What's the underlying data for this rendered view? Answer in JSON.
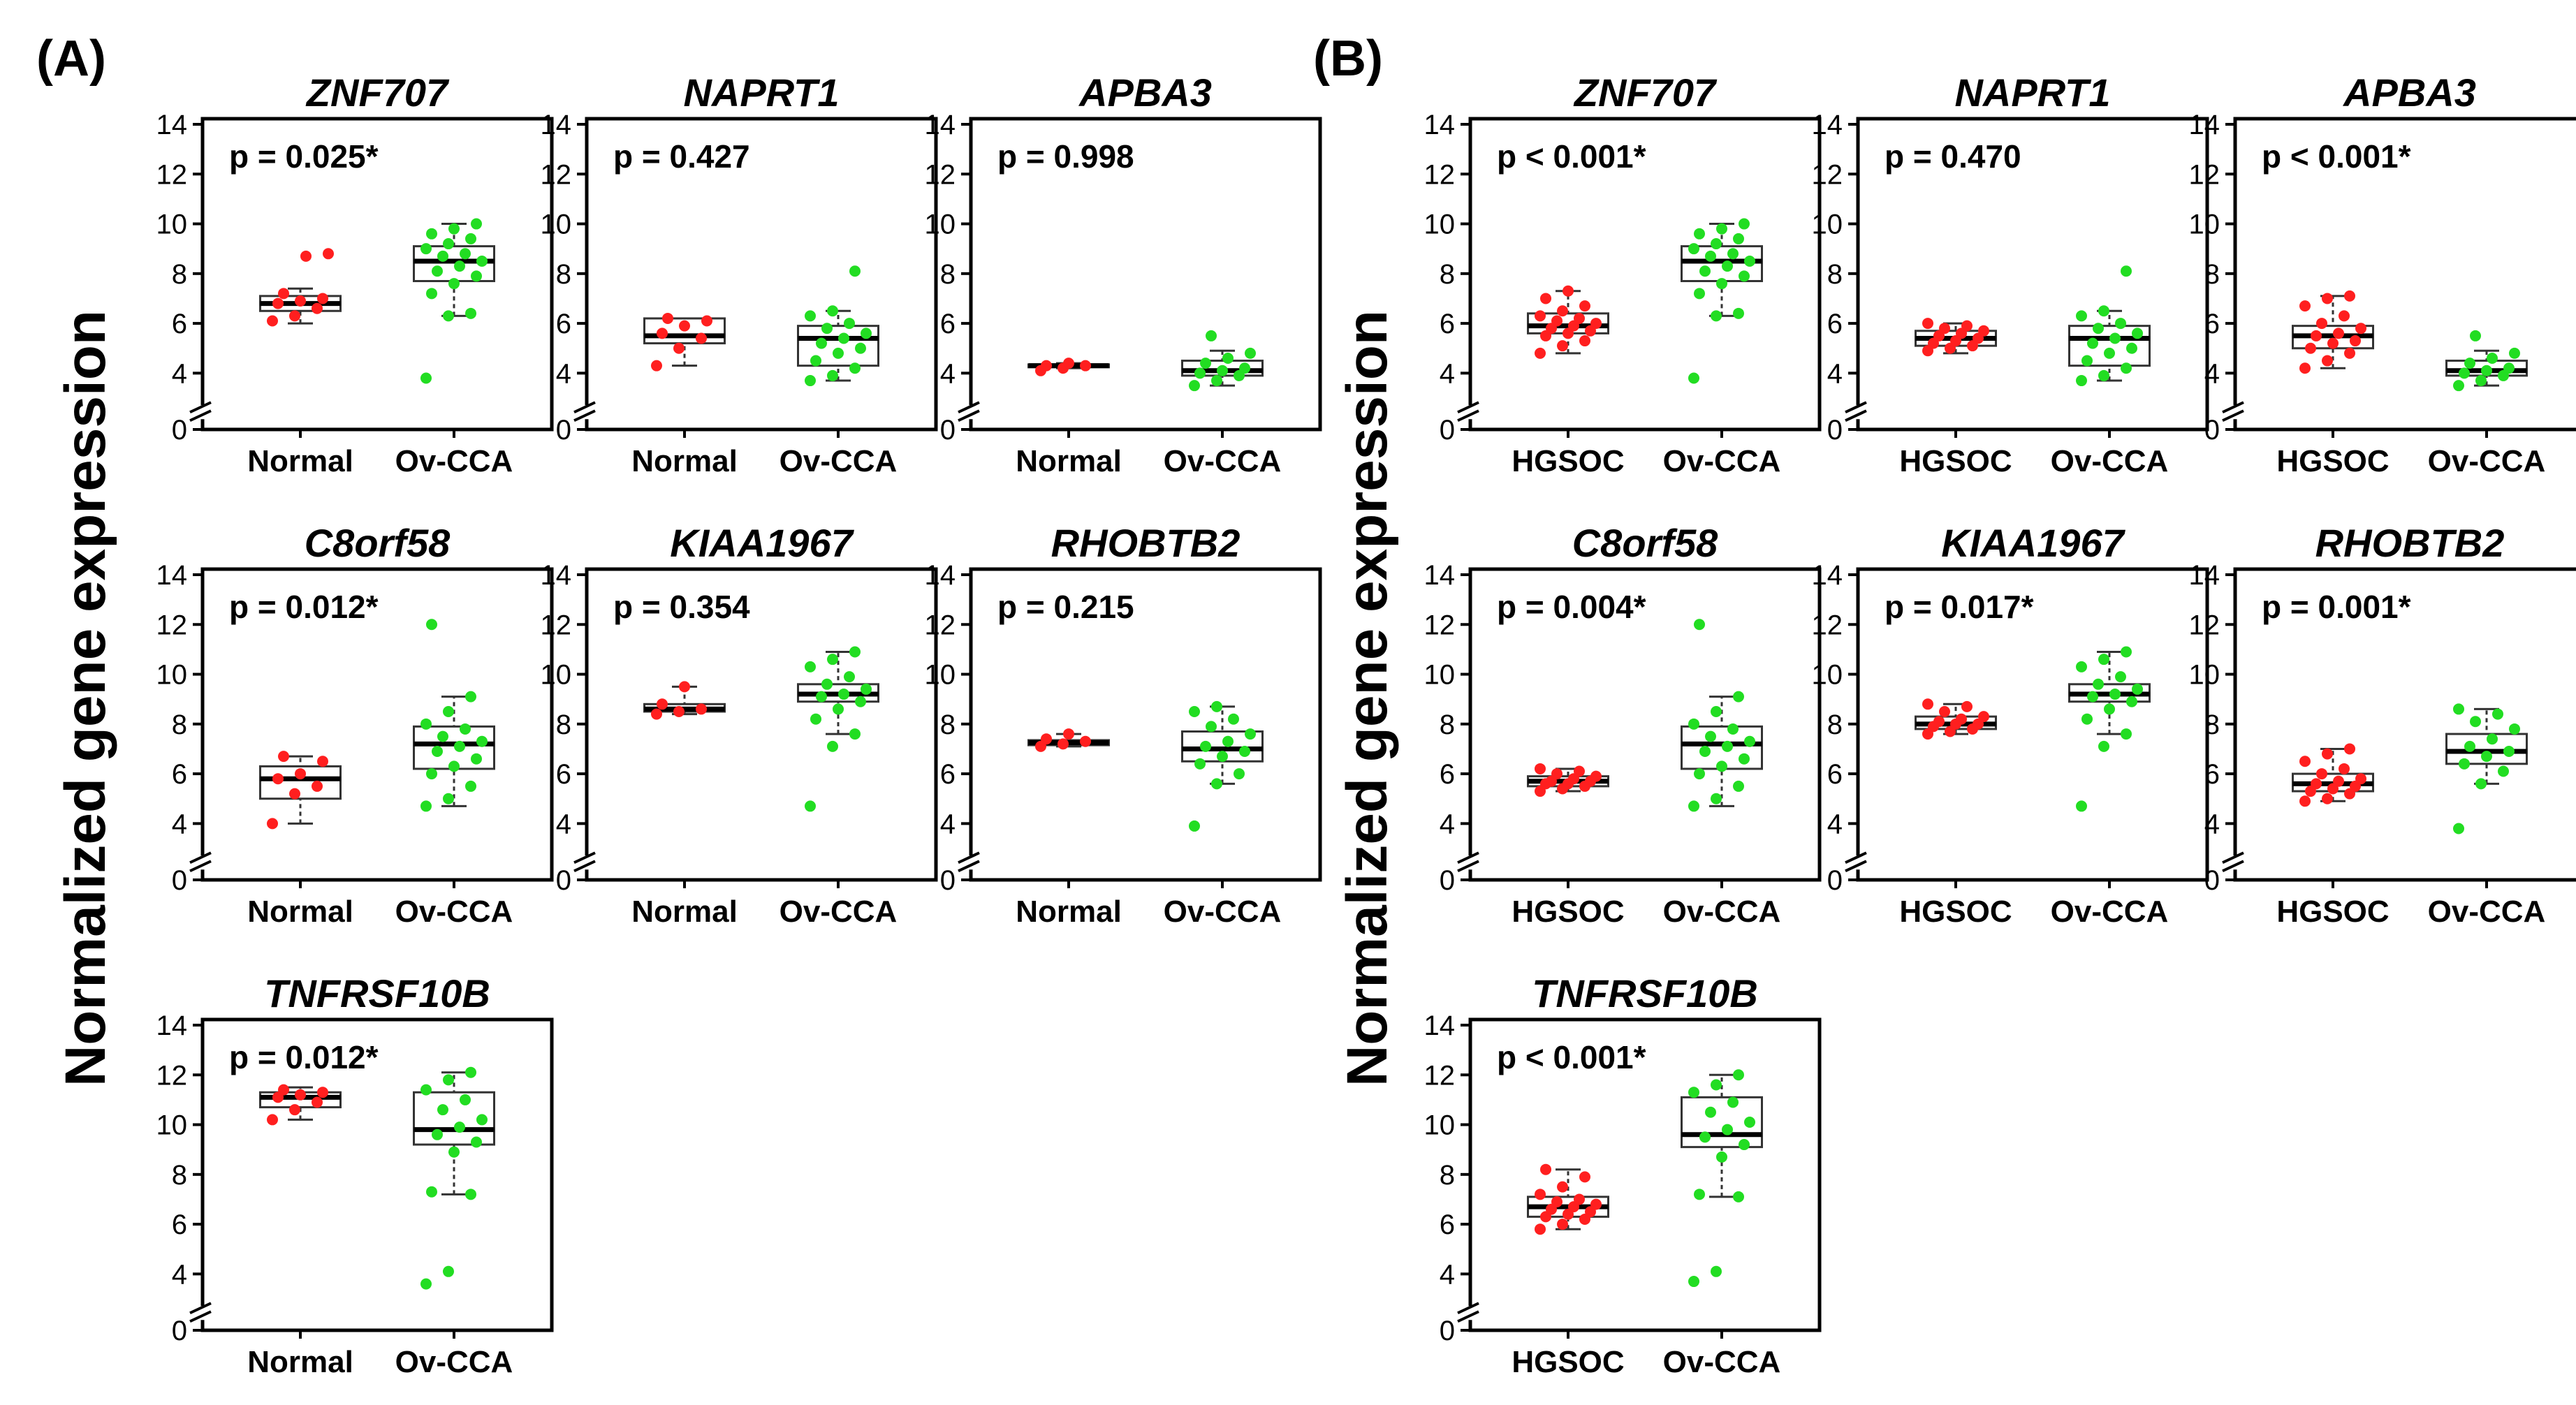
{
  "figure": {
    "panel_a_label": "(A)",
    "panel_b_label": "(B)",
    "ylabel": "Normalized gene expression",
    "colors": {
      "group1": "#ff1f1f",
      "group2": "#22dd22",
      "axis": "#000000",
      "box": "#333333"
    }
  },
  "chart_data": [
    {
      "panel": "A",
      "type": "box",
      "title": "ZNF707",
      "pvalue": "p = 0.025*",
      "categories": [
        "Normal",
        "Ov-CCA"
      ],
      "ylim": [
        0,
        14
      ],
      "yticks": [
        0,
        4,
        6,
        8,
        10,
        12,
        14
      ],
      "axis_break": true,
      "boxes": [
        {
          "whisker_low": 6.0,
          "q1": 6.5,
          "median": 6.8,
          "q3": 7.1,
          "whisker_high": 7.4,
          "points": [
            6.1,
            6.3,
            6.6,
            6.8,
            6.9,
            7.0,
            7.2,
            8.7,
            8.8
          ]
        },
        {
          "whisker_low": 6.3,
          "q1": 7.7,
          "median": 8.5,
          "q3": 9.1,
          "whisker_high": 10.0,
          "points": [
            3.8,
            6.3,
            6.4,
            7.2,
            7.6,
            7.9,
            8.1,
            8.3,
            8.5,
            8.7,
            8.8,
            9.0,
            9.2,
            9.4,
            9.6,
            9.8,
            10.0
          ]
        }
      ]
    },
    {
      "panel": "A",
      "type": "box",
      "title": "NAPRT1",
      "pvalue": "p = 0.427",
      "categories": [
        "Normal",
        "Ov-CCA"
      ],
      "ylim": [
        0,
        14
      ],
      "yticks": [
        0,
        4,
        6,
        8,
        10,
        12,
        14
      ],
      "axis_break": true,
      "boxes": [
        {
          "whisker_low": 4.3,
          "q1": 5.2,
          "median": 5.5,
          "q3": 6.2,
          "whisker_high": 6.2,
          "points": [
            4.3,
            5.0,
            5.4,
            5.6,
            5.9,
            6.1,
            6.2
          ]
        },
        {
          "whisker_low": 3.7,
          "q1": 4.3,
          "median": 5.4,
          "q3": 5.9,
          "whisker_high": 6.5,
          "points": [
            3.7,
            3.9,
            4.2,
            4.5,
            4.8,
            5.0,
            5.2,
            5.4,
            5.6,
            5.8,
            6.0,
            6.3,
            6.5,
            8.1
          ]
        }
      ]
    },
    {
      "panel": "A",
      "type": "box",
      "title": "APBA3",
      "pvalue": "p = 0.998",
      "categories": [
        "Normal",
        "Ov-CCA"
      ],
      "ylim": [
        0,
        14
      ],
      "yticks": [
        0,
        4,
        6,
        8,
        10,
        12,
        14
      ],
      "axis_break": true,
      "boxes": [
        {
          "whisker_low": 4.2,
          "q1": 4.25,
          "median": 4.3,
          "q3": 4.35,
          "whisker_high": 4.4,
          "points": [
            4.1,
            4.2,
            4.3,
            4.3,
            4.4
          ]
        },
        {
          "whisker_low": 3.5,
          "q1": 3.9,
          "median": 4.1,
          "q3": 4.5,
          "whisker_high": 4.9,
          "points": [
            3.5,
            3.7,
            3.9,
            4.0,
            4.1,
            4.2,
            4.4,
            4.6,
            4.8,
            5.5
          ]
        }
      ]
    },
    {
      "panel": "B",
      "type": "box",
      "title": "ZNF707",
      "pvalue": "p < 0.001*",
      "categories": [
        "HGSOC",
        "Ov-CCA"
      ],
      "ylim": [
        0,
        14
      ],
      "yticks": [
        0,
        4,
        6,
        8,
        10,
        12,
        14
      ],
      "axis_break": true,
      "boxes": [
        {
          "whisker_low": 4.8,
          "q1": 5.6,
          "median": 5.9,
          "q3": 6.4,
          "whisker_high": 7.3,
          "points": [
            4.8,
            5.1,
            5.3,
            5.5,
            5.6,
            5.7,
            5.8,
            5.9,
            6.0,
            6.1,
            6.2,
            6.3,
            6.5,
            6.7,
            7.0,
            7.3
          ]
        },
        {
          "whisker_low": 6.3,
          "q1": 7.7,
          "median": 8.5,
          "q3": 9.1,
          "whisker_high": 10.0,
          "points": [
            3.8,
            6.3,
            6.4,
            7.2,
            7.6,
            7.9,
            8.1,
            8.3,
            8.5,
            8.7,
            8.8,
            9.0,
            9.2,
            9.4,
            9.6,
            9.8,
            10.0
          ]
        }
      ]
    },
    {
      "panel": "B",
      "type": "box",
      "title": "NAPRT1",
      "pvalue": "p = 0.470",
      "categories": [
        "HGSOC",
        "Ov-CCA"
      ],
      "ylim": [
        0,
        14
      ],
      "yticks": [
        0,
        4,
        6,
        8,
        10,
        12,
        14
      ],
      "axis_break": true,
      "boxes": [
        {
          "whisker_low": 4.8,
          "q1": 5.1,
          "median": 5.4,
          "q3": 5.7,
          "whisker_high": 6.0,
          "points": [
            4.9,
            5.0,
            5.1,
            5.2,
            5.3,
            5.4,
            5.5,
            5.6,
            5.7,
            5.8,
            5.9,
            6.0
          ]
        },
        {
          "whisker_low": 3.7,
          "q1": 4.3,
          "median": 5.4,
          "q3": 5.9,
          "whisker_high": 6.5,
          "points": [
            3.7,
            3.9,
            4.2,
            4.5,
            4.8,
            5.0,
            5.2,
            5.4,
            5.6,
            5.8,
            6.0,
            6.3,
            6.5,
            8.1
          ]
        }
      ]
    },
    {
      "panel": "B",
      "type": "box",
      "title": "APBA3",
      "pvalue": "p < 0.001*",
      "categories": [
        "HGSOC",
        "Ov-CCA"
      ],
      "ylim": [
        0,
        14
      ],
      "yticks": [
        0,
        4,
        6,
        8,
        10,
        12,
        14
      ],
      "axis_break": true,
      "boxes": [
        {
          "whisker_low": 4.2,
          "q1": 5.0,
          "median": 5.5,
          "q3": 5.9,
          "whisker_high": 7.1,
          "points": [
            4.2,
            4.5,
            4.8,
            5.0,
            5.2,
            5.3,
            5.5,
            5.6,
            5.8,
            6.0,
            6.3,
            6.7,
            7.0,
            7.1
          ]
        },
        {
          "whisker_low": 3.5,
          "q1": 3.9,
          "median": 4.1,
          "q3": 4.5,
          "whisker_high": 4.9,
          "points": [
            3.5,
            3.7,
            3.9,
            4.0,
            4.1,
            4.2,
            4.4,
            4.6,
            4.8,
            5.5
          ]
        }
      ]
    },
    {
      "panel": "A",
      "type": "box",
      "title": "C8orf58",
      "pvalue": "p = 0.012*",
      "categories": [
        "Normal",
        "Ov-CCA"
      ],
      "ylim": [
        0,
        14
      ],
      "yticks": [
        0,
        4,
        6,
        8,
        10,
        12,
        14
      ],
      "axis_break": true,
      "boxes": [
        {
          "whisker_low": 4.0,
          "q1": 5.0,
          "median": 5.8,
          "q3": 6.3,
          "whisker_high": 6.7,
          "points": [
            4.0,
            5.2,
            5.5,
            5.8,
            6.0,
            6.5,
            6.7
          ]
        },
        {
          "whisker_low": 4.7,
          "q1": 6.2,
          "median": 7.2,
          "q3": 7.9,
          "whisker_high": 9.1,
          "points": [
            4.7,
            5.0,
            5.5,
            6.0,
            6.3,
            6.6,
            6.9,
            7.1,
            7.3,
            7.5,
            7.8,
            8.0,
            8.5,
            9.1,
            12.0
          ]
        }
      ]
    },
    {
      "panel": "A",
      "type": "box",
      "title": "KIAA1967",
      "pvalue": "p = 0.354",
      "categories": [
        "Normal",
        "Ov-CCA"
      ],
      "ylim": [
        0,
        14
      ],
      "yticks": [
        0,
        4,
        6,
        8,
        10,
        12,
        14
      ],
      "axis_break": true,
      "boxes": [
        {
          "whisker_low": 8.4,
          "q1": 8.5,
          "median": 8.6,
          "q3": 8.8,
          "whisker_high": 9.5,
          "points": [
            8.4,
            8.5,
            8.6,
            8.8,
            9.5
          ]
        },
        {
          "whisker_low": 7.6,
          "q1": 8.9,
          "median": 9.2,
          "q3": 9.6,
          "whisker_high": 10.9,
          "points": [
            4.7,
            7.1,
            7.6,
            8.2,
            8.6,
            8.9,
            9.1,
            9.2,
            9.4,
            9.6,
            9.9,
            10.3,
            10.6,
            10.9
          ]
        }
      ]
    },
    {
      "panel": "A",
      "type": "box",
      "title": "RHOBTB2",
      "pvalue": "p = 0.215",
      "categories": [
        "Normal",
        "Ov-CCA"
      ],
      "ylim": [
        0,
        14
      ],
      "yticks": [
        0,
        4,
        6,
        8,
        10,
        12,
        14
      ],
      "axis_break": true,
      "boxes": [
        {
          "whisker_low": 7.1,
          "q1": 7.15,
          "median": 7.25,
          "q3": 7.35,
          "whisker_high": 7.6,
          "points": [
            7.1,
            7.2,
            7.3,
            7.4,
            7.6
          ]
        },
        {
          "whisker_low": 5.6,
          "q1": 6.5,
          "median": 7.0,
          "q3": 7.7,
          "whisker_high": 8.7,
          "points": [
            3.9,
            5.6,
            6.0,
            6.4,
            6.7,
            6.9,
            7.1,
            7.3,
            7.6,
            7.9,
            8.2,
            8.5,
            8.7
          ]
        }
      ]
    },
    {
      "panel": "B",
      "type": "box",
      "title": "C8orf58",
      "pvalue": "p = 0.004*",
      "categories": [
        "HGSOC",
        "Ov-CCA"
      ],
      "ylim": [
        0,
        14
      ],
      "yticks": [
        0,
        4,
        6,
        8,
        10,
        12,
        14
      ],
      "axis_break": true,
      "boxes": [
        {
          "whisker_low": 5.3,
          "q1": 5.5,
          "median": 5.7,
          "q3": 5.9,
          "whisker_high": 6.2,
          "points": [
            5.3,
            5.4,
            5.5,
            5.6,
            5.6,
            5.7,
            5.7,
            5.8,
            5.9,
            6.0,
            6.1,
            6.2
          ]
        },
        {
          "whisker_low": 4.7,
          "q1": 6.2,
          "median": 7.2,
          "q3": 7.9,
          "whisker_high": 9.1,
          "points": [
            4.7,
            5.0,
            5.5,
            6.0,
            6.3,
            6.6,
            6.9,
            7.1,
            7.3,
            7.5,
            7.8,
            8.0,
            8.5,
            9.1,
            12.0
          ]
        }
      ]
    },
    {
      "panel": "B",
      "type": "box",
      "title": "KIAA1967",
      "pvalue": "p = 0.017*",
      "categories": [
        "HGSOC",
        "Ov-CCA"
      ],
      "ylim": [
        0,
        14
      ],
      "yticks": [
        0,
        4,
        6,
        8,
        10,
        12,
        14
      ],
      "axis_break": true,
      "boxes": [
        {
          "whisker_low": 7.6,
          "q1": 7.8,
          "median": 8.0,
          "q3": 8.3,
          "whisker_high": 8.8,
          "points": [
            7.6,
            7.7,
            7.8,
            7.9,
            8.0,
            8.0,
            8.1,
            8.2,
            8.3,
            8.5,
            8.7,
            8.8
          ]
        },
        {
          "whisker_low": 7.6,
          "q1": 8.9,
          "median": 9.2,
          "q3": 9.6,
          "whisker_high": 10.9,
          "points": [
            4.7,
            7.1,
            7.6,
            8.2,
            8.6,
            8.9,
            9.1,
            9.2,
            9.4,
            9.6,
            9.9,
            10.3,
            10.6,
            10.9
          ]
        }
      ]
    },
    {
      "panel": "B",
      "type": "box",
      "title": "RHOBTB2",
      "pvalue": "p = 0.001*",
      "categories": [
        "HGSOC",
        "Ov-CCA"
      ],
      "ylim": [
        0,
        14
      ],
      "yticks": [
        0,
        4,
        6,
        8,
        10,
        12,
        14
      ],
      "axis_break": true,
      "boxes": [
        {
          "whisker_low": 4.9,
          "q1": 5.3,
          "median": 5.6,
          "q3": 6.0,
          "whisker_high": 7.0,
          "points": [
            4.9,
            5.0,
            5.2,
            5.3,
            5.4,
            5.5,
            5.6,
            5.7,
            5.8,
            6.0,
            6.2,
            6.5,
            6.8,
            7.0
          ]
        },
        {
          "whisker_low": 5.6,
          "q1": 6.4,
          "median": 6.9,
          "q3": 7.6,
          "whisker_high": 8.6,
          "points": [
            3.8,
            5.6,
            6.1,
            6.4,
            6.7,
            6.9,
            7.1,
            7.4,
            7.8,
            8.1,
            8.4,
            8.6
          ]
        }
      ]
    },
    {
      "panel": "A",
      "type": "box",
      "title": "TNFRSF10B",
      "pvalue": "p = 0.012*",
      "categories": [
        "Normal",
        "Ov-CCA"
      ],
      "ylim": [
        0,
        14
      ],
      "yticks": [
        0,
        4,
        6,
        8,
        10,
        12,
        14
      ],
      "axis_break": true,
      "boxes": [
        {
          "whisker_low": 10.2,
          "q1": 10.7,
          "median": 11.1,
          "q3": 11.3,
          "whisker_high": 11.5,
          "points": [
            10.2,
            10.6,
            10.9,
            11.1,
            11.2,
            11.3,
            11.4
          ]
        },
        {
          "whisker_low": 7.2,
          "q1": 9.2,
          "median": 9.8,
          "q3": 11.3,
          "whisker_high": 12.1,
          "points": [
            3.6,
            4.1,
            7.2,
            7.3,
            8.9,
            9.3,
            9.6,
            9.9,
            10.2,
            10.6,
            11.0,
            11.4,
            11.8,
            12.1
          ]
        }
      ]
    },
    {
      "panel": "B",
      "type": "box",
      "title": "TNFRSF10B",
      "pvalue": "p < 0.001*",
      "categories": [
        "HGSOC",
        "Ov-CCA"
      ],
      "ylim": [
        0,
        14
      ],
      "yticks": [
        0,
        4,
        6,
        8,
        10,
        12,
        14
      ],
      "axis_break": true,
      "boxes": [
        {
          "whisker_low": 5.8,
          "q1": 6.3,
          "median": 6.7,
          "q3": 7.1,
          "whisker_high": 8.2,
          "points": [
            5.8,
            6.0,
            6.2,
            6.3,
            6.4,
            6.5,
            6.6,
            6.7,
            6.8,
            6.9,
            7.0,
            7.2,
            7.5,
            7.9,
            8.2
          ]
        },
        {
          "whisker_low": 7.1,
          "q1": 9.1,
          "median": 9.6,
          "q3": 11.1,
          "whisker_high": 12.0,
          "points": [
            3.7,
            4.1,
            7.1,
            7.2,
            8.7,
            9.2,
            9.5,
            9.8,
            10.1,
            10.5,
            10.9,
            11.3,
            11.6,
            12.0
          ]
        }
      ]
    }
  ]
}
